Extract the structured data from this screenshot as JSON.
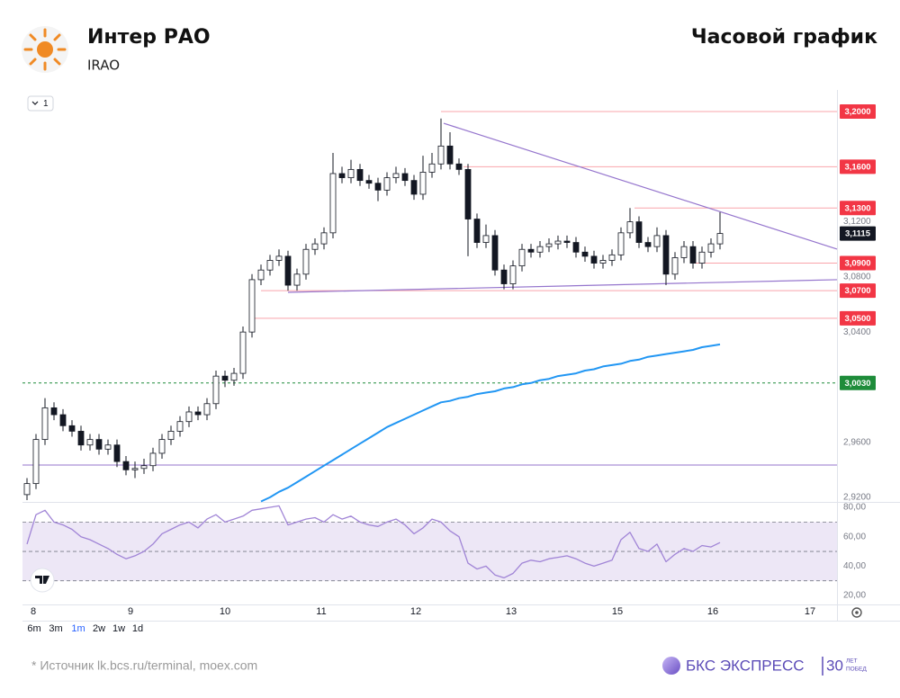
{
  "header": {
    "title": "Интер РАО",
    "ticker": "IRAO",
    "chart_kind": "Часовой график"
  },
  "controls": {
    "interval": "1",
    "timeframes": [
      "6m",
      "3m",
      "1m",
      "2w",
      "1w",
      "1d"
    ]
  },
  "footer": {
    "source": "*  Источник lk.bcs.ru/terminal, moex.com",
    "brand": "БКС ЭКСПРЕСС",
    "years": "30",
    "years_word1": "ЛЕТ",
    "years_word2": "ПОБЕД"
  },
  "chart_data": {
    "type": "candlestick",
    "xlim": [
      -0.5,
      90
    ],
    "xticks": [
      {
        "value": 0.7,
        "label": "8"
      },
      {
        "value": 11.5,
        "label": "9"
      },
      {
        "value": 22,
        "label": "10"
      },
      {
        "value": 32.7,
        "label": "11"
      },
      {
        "value": 43.2,
        "label": "12"
      },
      {
        "value": 53.8,
        "label": "13"
      },
      {
        "value": 65.6,
        "label": "15"
      },
      {
        "value": 76.2,
        "label": "16"
      },
      {
        "value": 87,
        "label": "17"
      }
    ],
    "ylim": [
      2.9167,
      3.2157
    ],
    "yticks": [
      {
        "value": 3.12,
        "label": "3,1200"
      },
      {
        "value": 3.08,
        "label": "3,0800"
      },
      {
        "value": 3.04,
        "label": "3,0400"
      },
      {
        "value": 2.96,
        "label": "2,9600"
      },
      {
        "value": 2.92,
        "label": "2,9200"
      }
    ],
    "grid": false,
    "candles": {
      "open": [
        2.922,
        2.93,
        2.962,
        2.985,
        2.98,
        2.972,
        2.968,
        2.958,
        2.962,
        2.955,
        2.958,
        2.946,
        2.94,
        2.941,
        2.943,
        2.952,
        2.962,
        2.968,
        2.975,
        2.982,
        2.98,
        2.988,
        3.008,
        3.005,
        3.01,
        3.04,
        3.078,
        3.085,
        3.092,
        3.095,
        3.074,
        3.082,
        3.1,
        3.104,
        3.112,
        3.155,
        3.152,
        3.158,
        3.15,
        3.148,
        3.143,
        3.152,
        3.155,
        3.15,
        3.14,
        3.156,
        3.162,
        3.175,
        3.162,
        3.158,
        3.122,
        3.105,
        3.11,
        3.085,
        3.075,
        3.088,
        3.1,
        3.098,
        3.102,
        3.104,
        3.106,
        3.105,
        3.098,
        3.095,
        3.09,
        3.092,
        3.096,
        3.112,
        3.12,
        3.105,
        3.102,
        3.11,
        3.082,
        3.094,
        3.102,
        3.09,
        3.098,
        3.104
      ],
      "high": [
        2.934,
        2.966,
        2.992,
        2.989,
        2.984,
        2.976,
        2.972,
        2.966,
        2.966,
        2.962,
        2.962,
        2.95,
        2.946,
        2.948,
        2.956,
        2.966,
        2.972,
        2.979,
        2.986,
        2.986,
        2.992,
        3.012,
        3.012,
        3.014,
        3.044,
        3.082,
        3.089,
        3.096,
        3.1,
        3.099,
        3.086,
        3.104,
        3.108,
        3.116,
        3.17,
        3.16,
        3.165,
        3.162,
        3.154,
        3.152,
        3.156,
        3.16,
        3.159,
        3.154,
        3.168,
        3.17,
        3.195,
        3.185,
        3.166,
        3.162,
        3.126,
        3.118,
        3.114,
        3.089,
        3.092,
        3.104,
        3.104,
        3.106,
        3.108,
        3.11,
        3.11,
        3.109,
        3.102,
        3.099,
        3.096,
        3.1,
        3.116,
        3.13,
        3.124,
        3.109,
        3.116,
        3.114,
        3.098,
        3.106,
        3.106,
        3.102,
        3.108,
        3.127
      ],
      "low": [
        2.918,
        2.926,
        2.958,
        2.976,
        2.968,
        2.964,
        2.954,
        2.954,
        2.951,
        2.951,
        2.942,
        2.936,
        2.934,
        2.937,
        2.939,
        2.948,
        2.958,
        2.964,
        2.971,
        2.976,
        2.976,
        2.984,
        3.0,
        3.001,
        3.006,
        3.036,
        3.074,
        3.081,
        3.088,
        3.07,
        3.07,
        3.078,
        3.096,
        3.1,
        3.108,
        3.148,
        3.148,
        3.146,
        3.144,
        3.135,
        3.139,
        3.148,
        3.146,
        3.136,
        3.136,
        3.152,
        3.158,
        3.158,
        3.154,
        3.095,
        3.101,
        3.101,
        3.081,
        3.071,
        3.071,
        3.084,
        3.094,
        3.094,
        3.098,
        3.1,
        3.101,
        3.094,
        3.091,
        3.086,
        3.086,
        3.088,
        3.092,
        3.108,
        3.101,
        3.098,
        3.098,
        3.074,
        3.078,
        3.09,
        3.086,
        3.086,
        3.094,
        3.1
      ],
      "close": [
        2.93,
        2.962,
        2.985,
        2.98,
        2.972,
        2.968,
        2.958,
        2.962,
        2.955,
        2.958,
        2.946,
        2.94,
        2.941,
        2.943,
        2.952,
        2.962,
        2.968,
        2.975,
        2.982,
        2.98,
        2.988,
        3.008,
        3.005,
        3.01,
        3.04,
        3.078,
        3.085,
        3.092,
        3.095,
        3.074,
        3.082,
        3.1,
        3.104,
        3.112,
        3.155,
        3.152,
        3.158,
        3.15,
        3.148,
        3.143,
        3.152,
        3.155,
        3.15,
        3.14,
        3.156,
        3.162,
        3.175,
        3.162,
        3.158,
        3.122,
        3.105,
        3.11,
        3.085,
        3.075,
        3.088,
        3.1,
        3.098,
        3.102,
        3.104,
        3.106,
        3.105,
        3.098,
        3.095,
        3.09,
        3.092,
        3.096,
        3.112,
        3.12,
        3.105,
        3.102,
        3.11,
        3.082,
        3.094,
        3.102,
        3.09,
        3.098,
        3.104,
        3.1115
      ]
    },
    "ma": {
      "color": "#2196f3",
      "values": [
        null,
        null,
        null,
        null,
        null,
        null,
        null,
        null,
        null,
        null,
        null,
        null,
        null,
        null,
        null,
        null,
        null,
        null,
        null,
        null,
        null,
        null,
        null,
        null,
        null,
        null,
        2.917,
        2.92,
        2.924,
        2.927,
        2.931,
        2.935,
        2.939,
        2.943,
        2.947,
        2.951,
        2.955,
        2.959,
        2.963,
        2.967,
        2.971,
        2.974,
        2.977,
        2.98,
        2.983,
        2.986,
        2.989,
        2.99,
        2.992,
        2.993,
        2.995,
        2.996,
        2.997,
        2.999,
        3.0,
        3.002,
        3.003,
        3.005,
        3.006,
        3.008,
        3.009,
        3.01,
        3.012,
        3.013,
        3.015,
        3.016,
        3.017,
        3.019,
        3.02,
        3.022,
        3.023,
        3.024,
        3.025,
        3.026,
        3.027,
        3.029,
        3.03,
        3.031
      ]
    },
    "last_price": {
      "value": 3.1115,
      "label": "3,1115"
    },
    "levels": [
      {
        "value": 3.2,
        "label": "3,2000",
        "start": 46,
        "color": "#f23645"
      },
      {
        "value": 3.16,
        "label": "3,1600",
        "start": 48.5,
        "color": "#f23645"
      },
      {
        "value": 3.13,
        "label": "3,1300",
        "start": 67.5,
        "color": "#f23645"
      },
      {
        "value": 3.09,
        "label": "3,0900",
        "start": 74,
        "color": "#f23645"
      },
      {
        "value": 3.07,
        "label": "3,0700",
        "start": 26,
        "color": "#f23645"
      },
      {
        "value": 3.05,
        "label": "3,0500",
        "start": 25,
        "color": "#f23645"
      },
      {
        "value": 3.003,
        "label": "3,0030",
        "start": -0.5,
        "color": "#1e8c3a",
        "dashed": true
      },
      {
        "value": 2.9435,
        "start": -0.5,
        "color": "#9575cd"
      }
    ],
    "trendlines": [
      {
        "x": [
          46.3,
          90
        ],
        "y": [
          3.1915,
          3.1002
        ],
        "color": "#9575cd"
      },
      {
        "x": [
          29,
          90
        ],
        "y": [
          3.0688,
          3.078
        ],
        "color": "#9575cd"
      }
    ],
    "rsi": {
      "color": "#a084d6",
      "band_color": "#ede7f6",
      "ylim": [
        13.9,
        83.7
      ],
      "yticks": [
        {
          "value": 80,
          "label": "80,00"
        },
        {
          "value": 60,
          "label": "60,00"
        },
        {
          "value": 40,
          "label": "40,00"
        },
        {
          "value": 20,
          "label": "20,00"
        }
      ],
      "bands": [
        30,
        50,
        70
      ],
      "values": [
        55,
        75,
        78,
        70,
        68,
        65,
        60,
        58,
        55,
        52,
        48,
        45,
        47,
        50,
        55,
        62,
        65,
        68,
        70,
        66,
        72,
        75,
        70,
        72,
        74,
        78,
        79,
        80,
        81,
        68,
        70,
        72,
        73,
        70,
        75,
        72,
        74,
        70,
        68,
        67,
        70,
        72,
        68,
        62,
        66,
        72,
        70,
        64,
        60,
        42,
        38,
        40,
        34,
        32,
        35,
        42,
        44,
        43,
        45,
        46,
        47,
        45,
        42,
        40,
        42,
        44,
        58,
        63,
        52,
        50,
        55,
        43,
        48,
        52,
        50,
        54,
        53,
        56
      ]
    }
  }
}
